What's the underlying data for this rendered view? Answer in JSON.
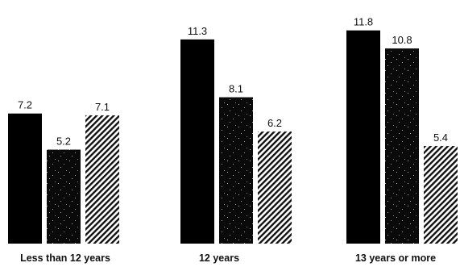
{
  "chart_data": {
    "type": "bar",
    "categories": [
      "Less than 12 years",
      "12 years",
      "13 years or more"
    ],
    "series": [
      {
        "values": [
          7.2,
          11.3,
          11.8
        ],
        "color": "#000000",
        "fill": "solid"
      },
      {
        "values": [
          5.2,
          8.1,
          10.8
        ],
        "color": "#0a0a0a",
        "fill": "speckled"
      },
      {
        "values": [
          7.1,
          6.2,
          5.4
        ],
        "color": "#111111",
        "fill": "hatched"
      }
    ],
    "value_labels": [
      [
        "7.2",
        "11.3",
        "11.8"
      ],
      [
        "5.2",
        "8.1",
        "10.8"
      ],
      [
        "7.1",
        "6.2",
        "5.4"
      ]
    ],
    "title": "",
    "xlabel": "",
    "ylabel": "",
    "ylim": [
      0,
      12
    ],
    "grid": false,
    "legend": "none"
  }
}
